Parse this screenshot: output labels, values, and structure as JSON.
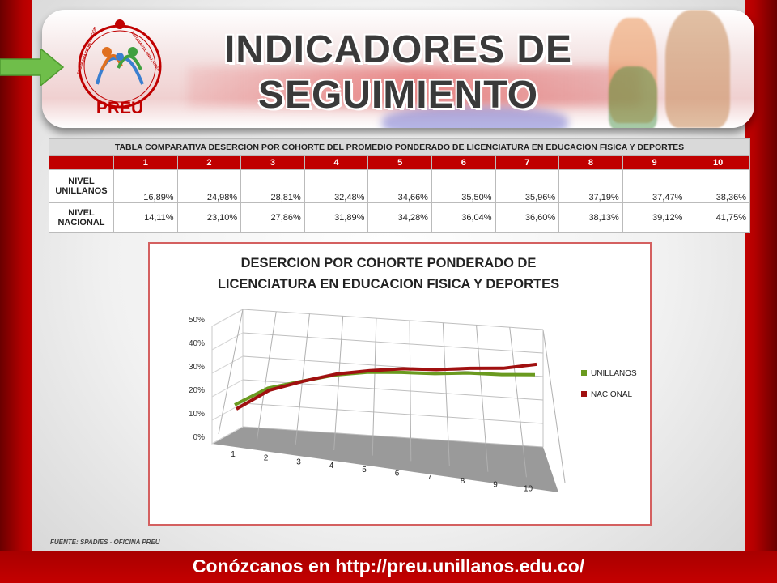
{
  "header": {
    "title_line1": "INDICADORES DE",
    "title_line2": "SEGUIMIENTO",
    "logo": {
      "brand": "PREU",
      "ring_text_left": "PROGRAMA DE RETENCIÓN",
      "ring_text_right": "ESTUDIANTIL UNILLANISTA"
    }
  },
  "table": {
    "title": "TABLA COMPARATIVA DESERCION POR COHORTE DEL PROMEDIO PONDERADO DE  LICENCIATURA EN EDUCACION FISICA Y DEPORTES",
    "columns": [
      "1",
      "2",
      "3",
      "4",
      "5",
      "6",
      "7",
      "8",
      "9",
      "10"
    ],
    "rows": [
      {
        "label_line1": "NIVEL",
        "label_line2": "UNILLANOS",
        "values": [
          "16,89%",
          "24,98%",
          "28,81%",
          "32,48%",
          "34,66%",
          "35,50%",
          "35,96%",
          "37,19%",
          "37,47%",
          "38,36%"
        ]
      },
      {
        "label_line1": "NIVEL",
        "label_line2": "NACIONAL",
        "values": [
          "14,11%",
          "23,10%",
          "27,86%",
          "31,89%",
          "34,28%",
          "36,04%",
          "36,60%",
          "38,13%",
          "39,12%",
          "41,75%"
        ]
      }
    ]
  },
  "chart_data": {
    "type": "line",
    "title_line1": "DESERCION POR COHORTE PONDERADO DE",
    "title_line2": "LICENCIATURA EN EDUCACION FISICA Y DEPORTES",
    "categories": [
      "1",
      "2",
      "3",
      "4",
      "5",
      "6",
      "7",
      "8",
      "9",
      "10"
    ],
    "y_ticks": [
      "0%",
      "10%",
      "20%",
      "30%",
      "40%",
      "50%"
    ],
    "ylim": [
      0,
      50
    ],
    "grid": true,
    "legend_position": "right",
    "series": [
      {
        "name": "UNILLANOS",
        "color": "#6a9a1f",
        "values": [
          16.89,
          24.98,
          28.81,
          32.48,
          34.66,
          35.5,
          35.96,
          37.19,
          37.47,
          38.36
        ]
      },
      {
        "name": "NACIONAL",
        "color": "#a01010",
        "values": [
          14.11,
          23.1,
          27.86,
          31.89,
          34.28,
          36.04,
          36.6,
          38.13,
          39.12,
          41.75
        ]
      }
    ]
  },
  "source": "FUENTE: SPADIES - OFICINA PREU",
  "footer": {
    "text": "Conózcanos en http://preu.unillanos.edu.co/"
  },
  "colors": {
    "brand_red": "#c00000",
    "arrow_green": "#6fbe4a"
  }
}
